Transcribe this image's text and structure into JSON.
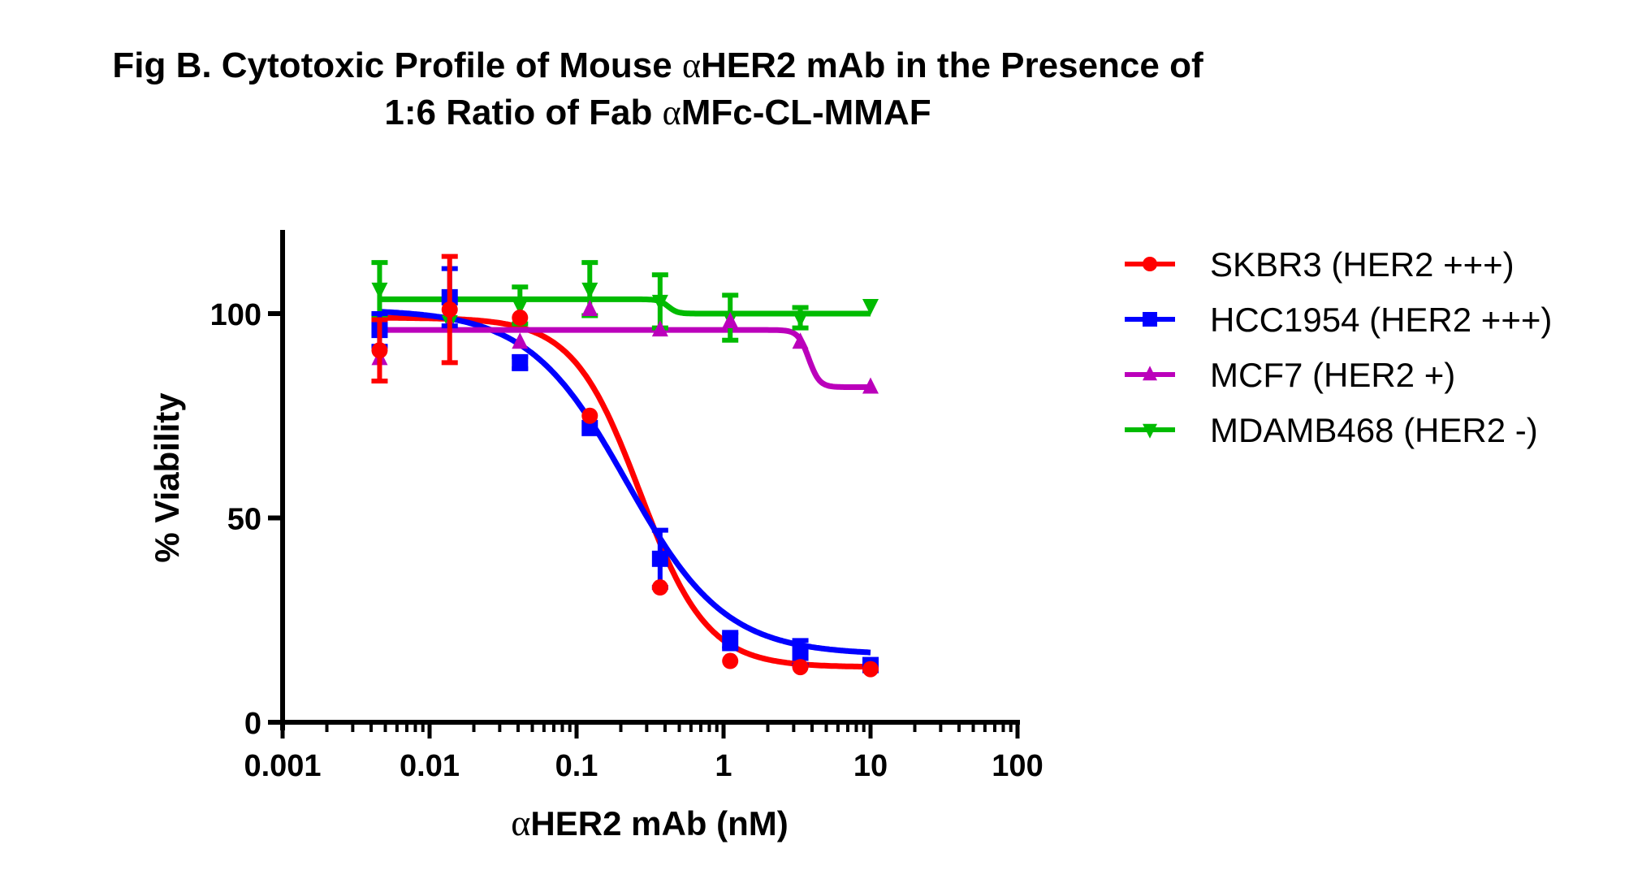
{
  "title": {
    "line1_prefix": "Fig B. Cytotoxic Profile of Mouse ",
    "line1_greek": "α",
    "line1_suffix": "HER2 mAb in the Presence of",
    "line2_prefix": "1:6 Ratio of Fab ",
    "line2_greek": "α",
    "line2_suffix": "MFc-CL-MMAF"
  },
  "chart_data": {
    "type": "scatter",
    "title": "Fig B. Cytotoxic Profile of Mouse αHER2 mAb in the Presence of 1:6 Ratio of Fab αMFc-CL-MMAF",
    "xlabel_greek": "α",
    "xlabel": "HER2 mAb (nM)",
    "ylabel": "% Viability",
    "xscale": "log",
    "xlim": [
      0.001,
      100
    ],
    "ylim": [
      0,
      120
    ],
    "xticks": [
      0.001,
      0.01,
      0.1,
      1,
      10,
      100
    ],
    "xtick_labels": [
      "0.001",
      "0.01",
      "0.1",
      "1",
      "10",
      "100"
    ],
    "yticks": [
      0,
      50,
      100
    ],
    "ytick_labels": [
      "0",
      "50",
      "100"
    ],
    "grid": false,
    "legend_position": "right",
    "x": [
      0.00457,
      0.0137,
      0.0412,
      0.123,
      0.37,
      1.11,
      3.33,
      10
    ],
    "series": [
      {
        "name": "SKBR3 (HER2 +++)",
        "color": "#ff0000",
        "marker": "circle",
        "values": [
          91,
          101,
          99,
          75,
          33,
          15,
          13.5,
          13
        ],
        "errors": [
          7.5,
          13,
          1,
          1,
          1,
          1,
          0.5,
          0.5
        ],
        "fit": {
          "type": "sigmoid",
          "top": 99,
          "bottom": 13.5,
          "ic50": 0.27,
          "hill": 1.9
        }
      },
      {
        "name": "HCC1954 (HER2 +++)",
        "color": "#0000ff",
        "marker": "square",
        "values": [
          96,
          104,
          88,
          72,
          40,
          20,
          17,
          14
        ],
        "errors": [
          4,
          7,
          1.5,
          1,
          7,
          2,
          3,
          1
        ],
        "fit": {
          "type": "sigmoid",
          "top": 101,
          "bottom": 16.5,
          "ic50": 0.22,
          "hill": 1.3
        }
      },
      {
        "name": "MCF7 (HER2 +)",
        "color": "#bb00bb",
        "marker": "triangle-up",
        "values": [
          89,
          97,
          93,
          101,
          96,
          98,
          93,
          82
        ],
        "errors": [
          1,
          1,
          1,
          1,
          1,
          1,
          1,
          1
        ],
        "fit": {
          "type": "sigmoid",
          "top": 96,
          "bottom": 82,
          "ic50": 3.8,
          "hill": 12
        }
      },
      {
        "name": "MDAMB468 (HER2 -)",
        "color": "#00bb00",
        "marker": "triangle-down",
        "values": [
          106,
          98,
          102,
          106,
          103,
          99,
          99,
          102
        ],
        "errors": [
          6.5,
          1,
          4.5,
          6.5,
          6.5,
          5.5,
          2.5,
          1
        ],
        "fit": {
          "type": "sigmoid",
          "top": 103.5,
          "bottom": 100,
          "ic50": 0.42,
          "hill": 14
        }
      }
    ]
  }
}
